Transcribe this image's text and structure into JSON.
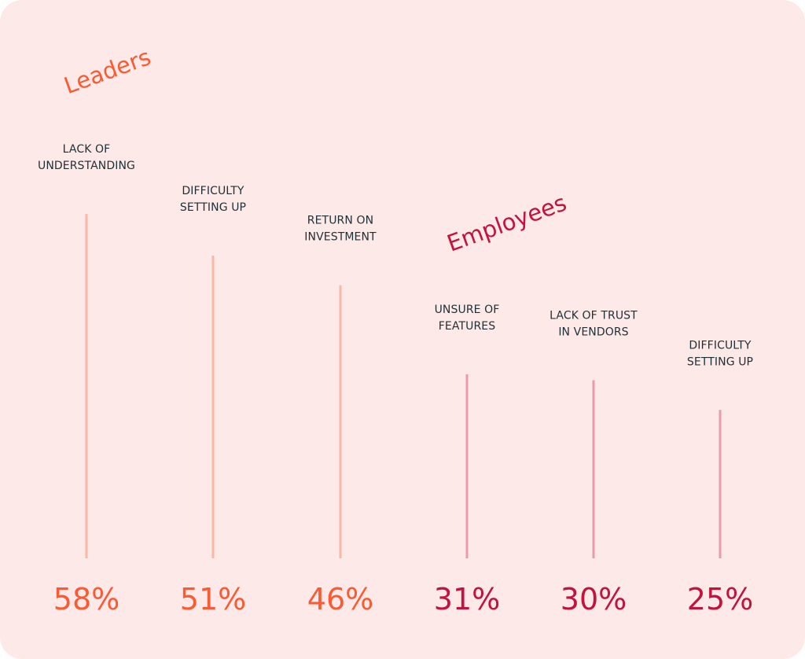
{
  "colors": {
    "background": "#fde9e7",
    "leaders_line": "#f9b7a6",
    "leaders_text": "#fb5a33",
    "employees_line": "#e99aae",
    "employees_text": "#c2123d",
    "label_text": "#1f2f36"
  },
  "chart_data": {
    "type": "bar",
    "groups": [
      {
        "name": "Leaders",
        "color": "#fb5a33",
        "line_color": "#f9b7a6",
        "items": [
          {
            "label_lines": [
              "LACK OF",
              "UNDERSTANDING"
            ],
            "value": 58,
            "display": "58%"
          },
          {
            "label_lines": [
              "DIFFICULTY",
              "SETTING UP"
            ],
            "value": 51,
            "display": "51%"
          },
          {
            "label_lines": [
              "RETURN ON",
              "INVESTMENT"
            ],
            "value": 46,
            "display": "46%"
          }
        ]
      },
      {
        "name": "Employees",
        "color": "#c2123d",
        "line_color": "#e99aae",
        "items": [
          {
            "label_lines": [
              "UNSURE OF",
              "FEATURES"
            ],
            "value": 31,
            "display": "31%"
          },
          {
            "label_lines": [
              "LACK OF TRUST",
              "IN VENDORS"
            ],
            "value": 30,
            "display": "30%"
          },
          {
            "label_lines": [
              "DIFFICULTY",
              "SETTING UP"
            ],
            "value": 25,
            "display": "25%"
          }
        ]
      }
    ]
  }
}
